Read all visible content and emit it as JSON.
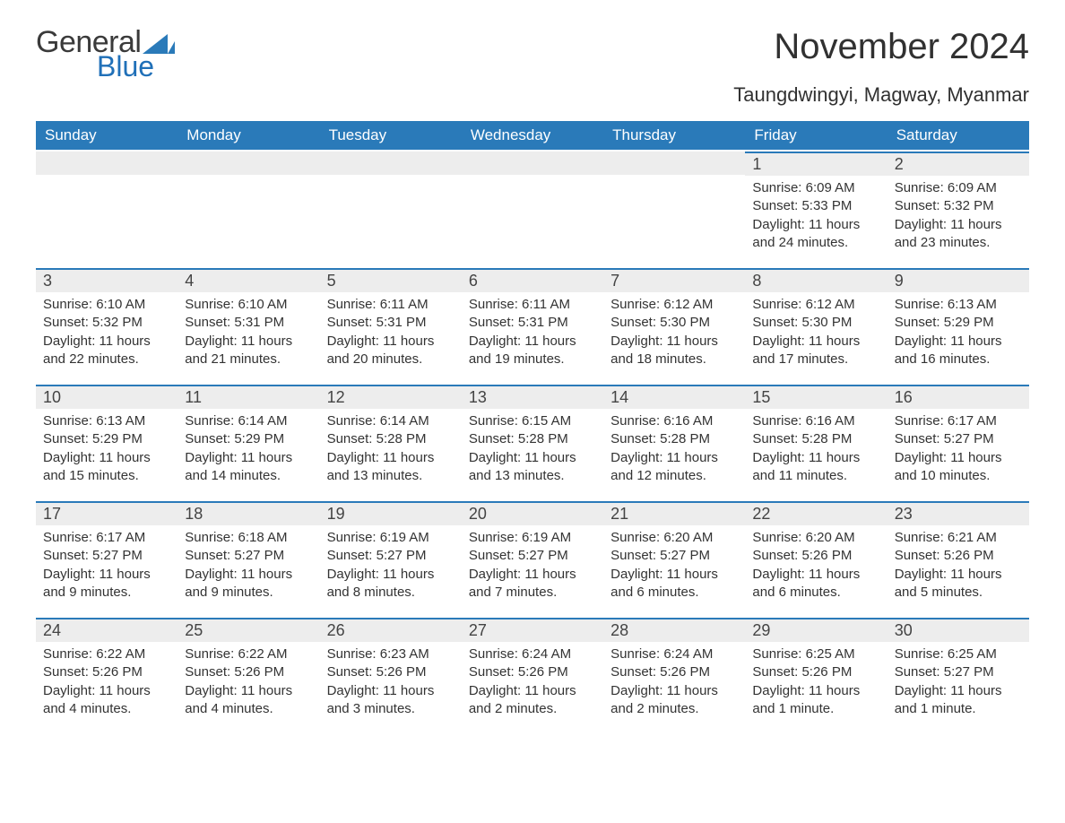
{
  "brand": {
    "word1": "General",
    "word2": "Blue",
    "accent_color": "#2070b8",
    "text_color": "#3a3a3a"
  },
  "header": {
    "month_title": "November 2024",
    "location": "Taungdwingyi, Magway, Myanmar"
  },
  "colors": {
    "header_bg": "#2a7ab9",
    "header_fg": "#ffffff",
    "daynum_bg": "#ededed",
    "rule": "#2a7ab9",
    "body_text": "#333333",
    "background": "#ffffff"
  },
  "typography": {
    "dow_fontsize": 17,
    "daynum_fontsize": 18,
    "body_fontsize": 15,
    "title_fontsize": 40,
    "location_fontsize": 22
  },
  "layout": {
    "columns": 7,
    "rows": 5,
    "leading_blanks": 5
  },
  "days_of_week": [
    "Sunday",
    "Monday",
    "Tuesday",
    "Wednesday",
    "Thursday",
    "Friday",
    "Saturday"
  ],
  "days": [
    {
      "n": "1",
      "sunrise": "Sunrise: 6:09 AM",
      "sunset": "Sunset: 5:33 PM",
      "daylight": "Daylight: 11 hours and 24 minutes."
    },
    {
      "n": "2",
      "sunrise": "Sunrise: 6:09 AM",
      "sunset": "Sunset: 5:32 PM",
      "daylight": "Daylight: 11 hours and 23 minutes."
    },
    {
      "n": "3",
      "sunrise": "Sunrise: 6:10 AM",
      "sunset": "Sunset: 5:32 PM",
      "daylight": "Daylight: 11 hours and 22 minutes."
    },
    {
      "n": "4",
      "sunrise": "Sunrise: 6:10 AM",
      "sunset": "Sunset: 5:31 PM",
      "daylight": "Daylight: 11 hours and 21 minutes."
    },
    {
      "n": "5",
      "sunrise": "Sunrise: 6:11 AM",
      "sunset": "Sunset: 5:31 PM",
      "daylight": "Daylight: 11 hours and 20 minutes."
    },
    {
      "n": "6",
      "sunrise": "Sunrise: 6:11 AM",
      "sunset": "Sunset: 5:31 PM",
      "daylight": "Daylight: 11 hours and 19 minutes."
    },
    {
      "n": "7",
      "sunrise": "Sunrise: 6:12 AM",
      "sunset": "Sunset: 5:30 PM",
      "daylight": "Daylight: 11 hours and 18 minutes."
    },
    {
      "n": "8",
      "sunrise": "Sunrise: 6:12 AM",
      "sunset": "Sunset: 5:30 PM",
      "daylight": "Daylight: 11 hours and 17 minutes."
    },
    {
      "n": "9",
      "sunrise": "Sunrise: 6:13 AM",
      "sunset": "Sunset: 5:29 PM",
      "daylight": "Daylight: 11 hours and 16 minutes."
    },
    {
      "n": "10",
      "sunrise": "Sunrise: 6:13 AM",
      "sunset": "Sunset: 5:29 PM",
      "daylight": "Daylight: 11 hours and 15 minutes."
    },
    {
      "n": "11",
      "sunrise": "Sunrise: 6:14 AM",
      "sunset": "Sunset: 5:29 PM",
      "daylight": "Daylight: 11 hours and 14 minutes."
    },
    {
      "n": "12",
      "sunrise": "Sunrise: 6:14 AM",
      "sunset": "Sunset: 5:28 PM",
      "daylight": "Daylight: 11 hours and 13 minutes."
    },
    {
      "n": "13",
      "sunrise": "Sunrise: 6:15 AM",
      "sunset": "Sunset: 5:28 PM",
      "daylight": "Daylight: 11 hours and 13 minutes."
    },
    {
      "n": "14",
      "sunrise": "Sunrise: 6:16 AM",
      "sunset": "Sunset: 5:28 PM",
      "daylight": "Daylight: 11 hours and 12 minutes."
    },
    {
      "n": "15",
      "sunrise": "Sunrise: 6:16 AM",
      "sunset": "Sunset: 5:28 PM",
      "daylight": "Daylight: 11 hours and 11 minutes."
    },
    {
      "n": "16",
      "sunrise": "Sunrise: 6:17 AM",
      "sunset": "Sunset: 5:27 PM",
      "daylight": "Daylight: 11 hours and 10 minutes."
    },
    {
      "n": "17",
      "sunrise": "Sunrise: 6:17 AM",
      "sunset": "Sunset: 5:27 PM",
      "daylight": "Daylight: 11 hours and 9 minutes."
    },
    {
      "n": "18",
      "sunrise": "Sunrise: 6:18 AM",
      "sunset": "Sunset: 5:27 PM",
      "daylight": "Daylight: 11 hours and 9 minutes."
    },
    {
      "n": "19",
      "sunrise": "Sunrise: 6:19 AM",
      "sunset": "Sunset: 5:27 PM",
      "daylight": "Daylight: 11 hours and 8 minutes."
    },
    {
      "n": "20",
      "sunrise": "Sunrise: 6:19 AM",
      "sunset": "Sunset: 5:27 PM",
      "daylight": "Daylight: 11 hours and 7 minutes."
    },
    {
      "n": "21",
      "sunrise": "Sunrise: 6:20 AM",
      "sunset": "Sunset: 5:27 PM",
      "daylight": "Daylight: 11 hours and 6 minutes."
    },
    {
      "n": "22",
      "sunrise": "Sunrise: 6:20 AM",
      "sunset": "Sunset: 5:26 PM",
      "daylight": "Daylight: 11 hours and 6 minutes."
    },
    {
      "n": "23",
      "sunrise": "Sunrise: 6:21 AM",
      "sunset": "Sunset: 5:26 PM",
      "daylight": "Daylight: 11 hours and 5 minutes."
    },
    {
      "n": "24",
      "sunrise": "Sunrise: 6:22 AM",
      "sunset": "Sunset: 5:26 PM",
      "daylight": "Daylight: 11 hours and 4 minutes."
    },
    {
      "n": "25",
      "sunrise": "Sunrise: 6:22 AM",
      "sunset": "Sunset: 5:26 PM",
      "daylight": "Daylight: 11 hours and 4 minutes."
    },
    {
      "n": "26",
      "sunrise": "Sunrise: 6:23 AM",
      "sunset": "Sunset: 5:26 PM",
      "daylight": "Daylight: 11 hours and 3 minutes."
    },
    {
      "n": "27",
      "sunrise": "Sunrise: 6:24 AM",
      "sunset": "Sunset: 5:26 PM",
      "daylight": "Daylight: 11 hours and 2 minutes."
    },
    {
      "n": "28",
      "sunrise": "Sunrise: 6:24 AM",
      "sunset": "Sunset: 5:26 PM",
      "daylight": "Daylight: 11 hours and 2 minutes."
    },
    {
      "n": "29",
      "sunrise": "Sunrise: 6:25 AM",
      "sunset": "Sunset: 5:26 PM",
      "daylight": "Daylight: 11 hours and 1 minute."
    },
    {
      "n": "30",
      "sunrise": "Sunrise: 6:25 AM",
      "sunset": "Sunset: 5:27 PM",
      "daylight": "Daylight: 11 hours and 1 minute."
    }
  ]
}
